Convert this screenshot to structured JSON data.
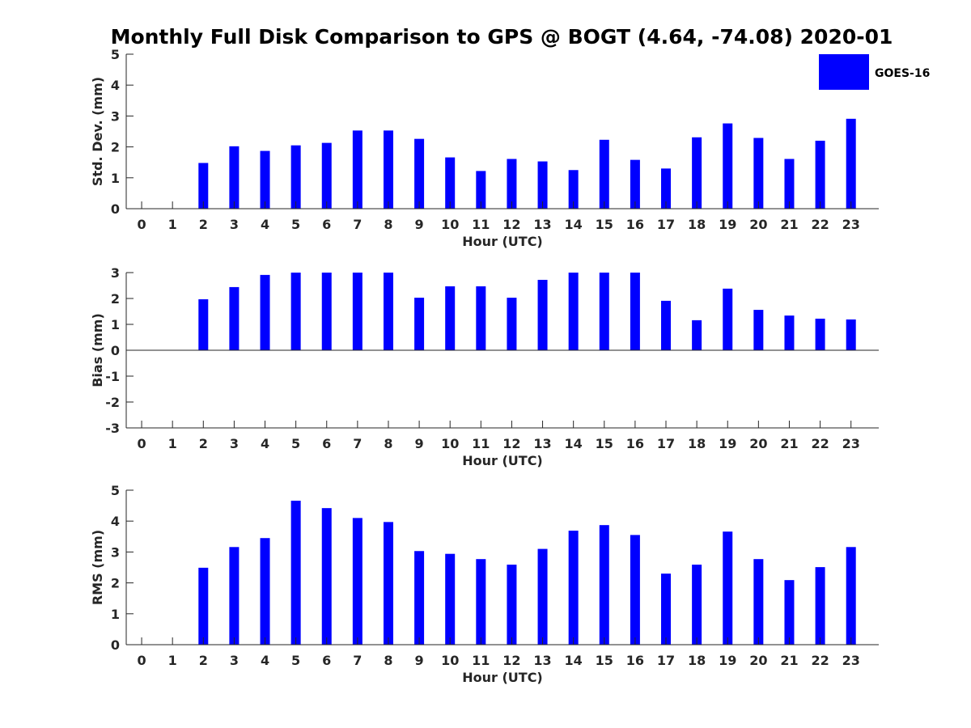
{
  "chart_data": {
    "title": "Monthly Full Disk Comparison to GPS @ BOGT (4.64, -74.08) 2020-01",
    "colors": {
      "bar": "#0000ff",
      "axis": "#262626",
      "title": "#000000"
    },
    "legend": {
      "label": "GOES-16",
      "placement": "top-right"
    },
    "panels": [
      {
        "name": "std-dev",
        "type": "bar",
        "ylabel": "Std. Dev. (mm)",
        "xlabel": "Hour (UTC)",
        "ylim": [
          0,
          5
        ],
        "yticks": [
          0,
          1,
          2,
          3,
          4,
          5
        ],
        "ytick_labels": [
          "0",
          "1",
          "2",
          "3",
          "4",
          "5"
        ],
        "categories": [
          "0",
          "1",
          "2",
          "3",
          "4",
          "5",
          "6",
          "7",
          "8",
          "9",
          "10",
          "11",
          "12",
          "13",
          "14",
          "15",
          "16",
          "17",
          "18",
          "19",
          "20",
          "21",
          "22",
          "23"
        ],
        "values": [
          null,
          null,
          1.48,
          2.02,
          1.87,
          2.05,
          2.13,
          2.53,
          2.53,
          2.26,
          1.66,
          1.22,
          1.61,
          1.53,
          1.25,
          2.23,
          1.58,
          1.3,
          2.31,
          2.76,
          2.29,
          1.61,
          2.2,
          2.91
        ]
      },
      {
        "name": "bias",
        "type": "bar",
        "ylabel": "Bias (mm)",
        "xlabel": "Hour (UTC)",
        "ylim": [
          -3,
          3
        ],
        "yticks": [
          -3,
          -2,
          -1,
          0,
          1,
          2,
          3
        ],
        "ytick_labels": [
          "-3",
          "-2",
          "-1",
          "0",
          "1",
          "2",
          "3"
        ],
        "categories": [
          "0",
          "1",
          "2",
          "3",
          "4",
          "5",
          "6",
          "7",
          "8",
          "9",
          "10",
          "11",
          "12",
          "13",
          "14",
          "15",
          "16",
          "17",
          "18",
          "19",
          "20",
          "21",
          "22",
          "23"
        ],
        "values": [
          null,
          null,
          1.97,
          2.44,
          2.91,
          3.0,
          3.0,
          3.0,
          3.0,
          2.03,
          2.47,
          2.47,
          2.03,
          2.72,
          3.0,
          3.0,
          3.0,
          1.91,
          1.16,
          2.38,
          1.56,
          1.34,
          1.22,
          1.19
        ]
      },
      {
        "name": "rms",
        "type": "bar",
        "ylabel": "RMS (mm)",
        "xlabel": "Hour (UTC)",
        "ylim": [
          0,
          5
        ],
        "yticks": [
          0,
          1,
          2,
          3,
          4,
          5
        ],
        "ytick_labels": [
          "0",
          "1",
          "2",
          "3",
          "4",
          "5"
        ],
        "categories": [
          "0",
          "1",
          "2",
          "3",
          "4",
          "5",
          "6",
          "7",
          "8",
          "9",
          "10",
          "11",
          "12",
          "13",
          "14",
          "15",
          "16",
          "17",
          "18",
          "19",
          "20",
          "21",
          "22",
          "23"
        ],
        "values": [
          null,
          null,
          2.49,
          3.16,
          3.45,
          4.66,
          4.42,
          4.1,
          3.97,
          3.03,
          2.94,
          2.77,
          2.59,
          3.1,
          3.69,
          3.87,
          3.55,
          2.3,
          2.59,
          3.66,
          2.77,
          2.09,
          2.51,
          3.16
        ]
      }
    ]
  }
}
